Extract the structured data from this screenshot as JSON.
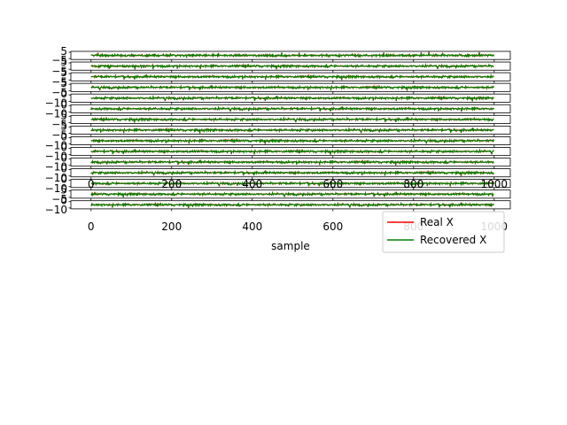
{
  "chart_data": {
    "type": "line",
    "title": "",
    "xlabel": "sample",
    "ylabel": "",
    "xlim": [
      -50,
      1040
    ],
    "x_tick_values": [
      0,
      200,
      400,
      600,
      800,
      1000
    ],
    "x_tick_labels": [
      "0",
      "200",
      "400",
      "600",
      "800",
      "1000"
    ],
    "n_samples": 1000,
    "n_subplots": 15,
    "legend_position": "bottom-right",
    "series": [
      {
        "name": "Real X",
        "color": "#ff0000"
      },
      {
        "name": "Recovered X",
        "color": "#008000"
      }
    ],
    "subplots": [
      {
        "ylim": [
          -6,
          6
        ],
        "y_tick_labels": [
          "5",
          "−5"
        ]
      },
      {
        "ylim": [
          -6,
          6
        ],
        "y_tick_labels": [
          "5",
          "−5"
        ]
      },
      {
        "ylim": [
          -6,
          6
        ],
        "y_tick_labels": [
          "5",
          "−5"
        ]
      },
      {
        "ylim": [
          -6,
          6
        ],
        "y_tick_labels": [
          "5",
          "−5"
        ]
      },
      {
        "ylim": [
          -12,
          12
        ],
        "y_tick_labels": [
          "0",
          "−10"
        ]
      },
      {
        "ylim": [
          -12,
          12
        ],
        "y_tick_labels": [
          "0",
          "−10"
        ]
      },
      {
        "ylim": [
          -6,
          6
        ],
        "y_tick_labels": [
          "5",
          "−5"
        ]
      },
      {
        "ylim": [
          -6,
          6
        ],
        "y_tick_labels": [
          "5",
          "−5"
        ]
      },
      {
        "ylim": [
          -12,
          12
        ],
        "y_tick_labels": [
          "0",
          "−10"
        ]
      },
      {
        "ylim": [
          -12,
          12
        ],
        "y_tick_labels": [
          "0",
          "−10"
        ]
      },
      {
        "ylim": [
          -12,
          12
        ],
        "y_tick_labels": [
          "0",
          "−10"
        ]
      },
      {
        "ylim": [
          -12,
          12
        ],
        "y_tick_labels": [
          "0",
          "−10"
        ]
      },
      {
        "ylim": [
          -12,
          12
        ],
        "y_tick_labels": [
          "0",
          "−10"
        ]
      },
      {
        "ylim": [
          -12,
          12
        ],
        "y_tick_labels": [
          "5",
          "−5"
        ]
      },
      {
        "ylim": [
          -12,
          12
        ],
        "y_tick_labels": [
          "0",
          "−10"
        ]
      }
    ],
    "bottom_axis_labels_subplot_index": 14,
    "overlapping_x_tick_labels_subplot_index": 11
  }
}
